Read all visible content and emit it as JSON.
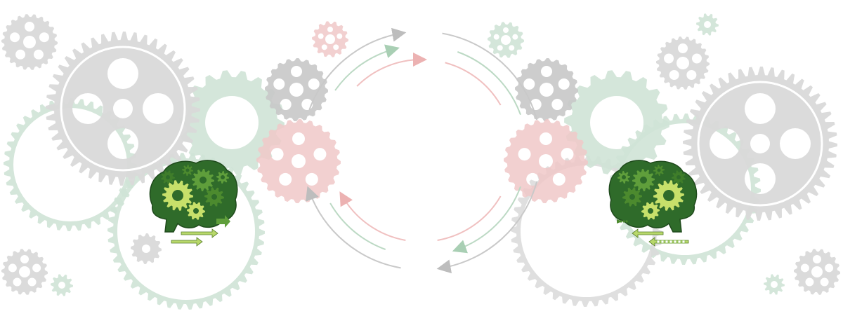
{
  "illustration": {
    "palette": {
      "gear_gray": "#c8c8c8",
      "gear_gray_light": "#d9d9d9",
      "gear_green": "#cfe3d6",
      "gear_pink": "#f0c8c8",
      "brain_dark": "#2f6b2a",
      "brain_mid": "#5f9e3b",
      "brain_light": "#c7e06a",
      "arrow_green": "#7cb342",
      "cycle_gray": "#c9c9c9",
      "cycle_green": "#bcd9c4",
      "cycle_pink": "#f0c0c0"
    },
    "icons": [
      "gear-icon",
      "brain-gears-icon",
      "arrow-right-icon",
      "arrow-left-icon",
      "cycle-arrow-icon"
    ]
  }
}
